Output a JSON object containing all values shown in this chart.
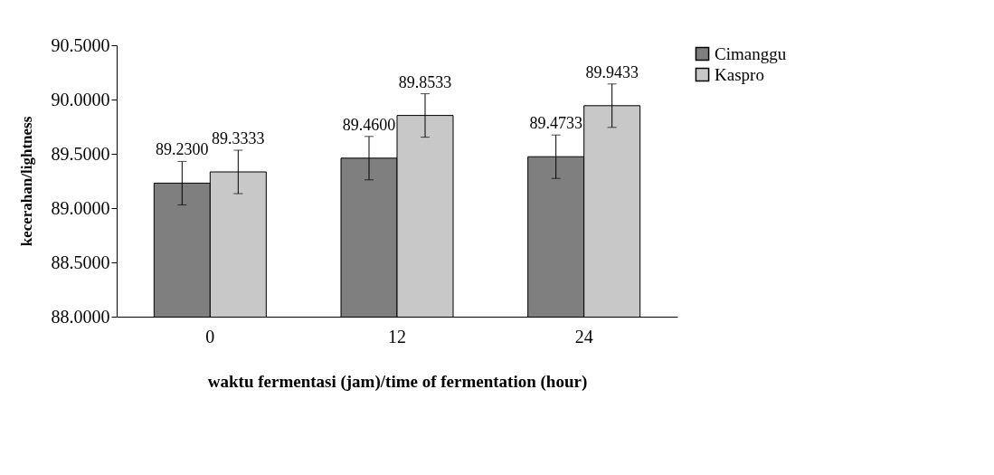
{
  "chart_data": {
    "type": "bar",
    "xlabel": "waktu fermentasi (jam)/time of fermentation (hour)",
    "ylabel": "kecerahan/lightness",
    "categories": [
      "0",
      "12",
      "24"
    ],
    "series": [
      {
        "name": "Cimanggu",
        "color": "#7f7f7f",
        "values": [
          89.23,
          89.46,
          89.4733
        ],
        "errors": [
          0.2,
          0.2,
          0.2
        ],
        "value_labels": [
          "89.2300",
          "89.4600",
          "89.4733"
        ]
      },
      {
        "name": "Kaspro",
        "color": "#c8c8c8",
        "values": [
          89.3333,
          89.8533,
          89.9433
        ],
        "errors": [
          0.2,
          0.2,
          0.2
        ],
        "value_labels": [
          "89.3333",
          "89.8533",
          "89.9433"
        ]
      }
    ],
    "ylim": [
      88,
      90.5
    ],
    "yticks": [
      {
        "value": 88,
        "label": "88.0000"
      },
      {
        "value": 88.5,
        "label": "88.5000"
      },
      {
        "value": 89,
        "label": "89.0000"
      },
      {
        "value": 89.5,
        "label": "89.5000"
      },
      {
        "value": 90,
        "label": "90.0000"
      },
      {
        "value": 90.5,
        "label": "90.5000"
      }
    ],
    "grid": false,
    "legend": "right"
  }
}
